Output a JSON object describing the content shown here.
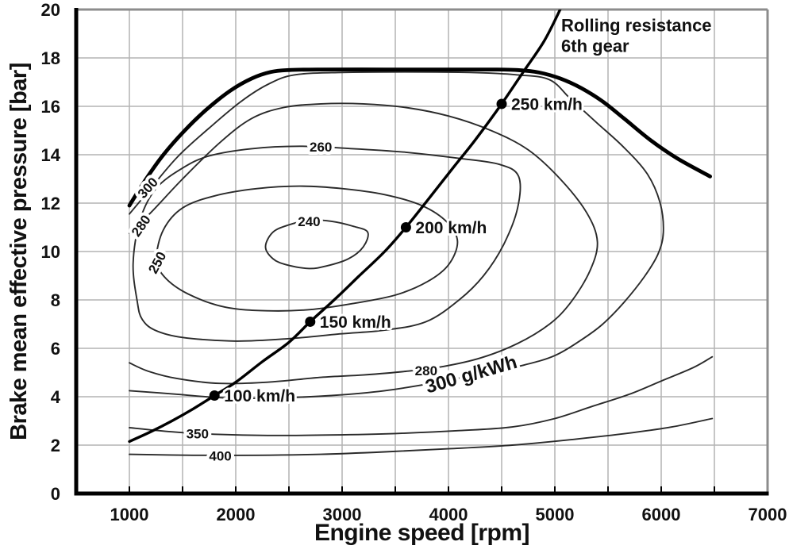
{
  "chart_data": {
    "type": "line",
    "title": "",
    "xlabel": "Engine speed [rpm]",
    "ylabel": "Brake mean effective pressure [bar]",
    "xlim": [
      500,
      7000
    ],
    "ylim": [
      0,
      20
    ],
    "x_ticks": [
      1000,
      2000,
      3000,
      4000,
      5000,
      6000,
      7000
    ],
    "x_minor_step": 500,
    "y_ticks": [
      0,
      2,
      4,
      6,
      8,
      10,
      12,
      14,
      16,
      18,
      20
    ],
    "grid": "on",
    "colors": {
      "grid": "#b3b3b3",
      "border_gray": "#8c8c8c",
      "axis_black": "#000000",
      "contour": "#2a2a2a",
      "text": "#111111"
    },
    "full_load_curve": {
      "name": "full-load-limit",
      "points": [
        [
          1000,
          11.9
        ],
        [
          1150,
          12.95
        ],
        [
          1320,
          14.0
        ],
        [
          1520,
          15.0
        ],
        [
          1720,
          15.85
        ],
        [
          1950,
          16.65
        ],
        [
          2150,
          17.15
        ],
        [
          2330,
          17.42
        ],
        [
          2500,
          17.5
        ],
        [
          2800,
          17.52
        ],
        [
          3400,
          17.52
        ],
        [
          4000,
          17.52
        ],
        [
          4400,
          17.52
        ],
        [
          4650,
          17.5
        ],
        [
          4850,
          17.4
        ],
        [
          5050,
          17.15
        ],
        [
          5250,
          16.75
        ],
        [
          5450,
          16.2
        ],
        [
          5650,
          15.5
        ],
        [
          5900,
          14.6
        ],
        [
          6150,
          13.85
        ],
        [
          6460,
          13.1
        ]
      ]
    },
    "rolling_resistance_curve": {
      "label_lines": [
        "Rolling resistance",
        "6th gear"
      ],
      "label_pos": {
        "rpm": 5060,
        "bar_line1": 19.1,
        "bar_line2": 18.25
      },
      "points": [
        [
          1000,
          2.15
        ],
        [
          1200,
          2.55
        ],
        [
          1400,
          3.0
        ],
        [
          1600,
          3.5
        ],
        [
          1800,
          4.05
        ],
        [
          2000,
          4.6
        ],
        [
          2250,
          5.45
        ],
        [
          2500,
          6.25
        ],
        [
          2700,
          7.1
        ],
        [
          2950,
          8.1
        ],
        [
          3150,
          8.95
        ],
        [
          3400,
          10.0
        ],
        [
          3600,
          11.0
        ],
        [
          3800,
          12.1
        ],
        [
          4050,
          13.5
        ],
        [
          4250,
          14.6
        ],
        [
          4500,
          16.1
        ],
        [
          4700,
          17.4
        ],
        [
          4900,
          18.7
        ],
        [
          5050,
          20.0
        ]
      ],
      "speed_points": [
        {
          "label": "100 km/h",
          "rpm": 1800,
          "bar": 4.05
        },
        {
          "label": "150 km/h",
          "rpm": 2700,
          "bar": 7.1
        },
        {
          "label": "200 km/h",
          "rpm": 3600,
          "bar": 11.0
        },
        {
          "label": "250 km/h",
          "rpm": 4500,
          "bar": 16.1
        }
      ]
    },
    "contours": [
      {
        "level": "240",
        "closed": true,
        "points": [
          [
            2280,
            10.2
          ],
          [
            2350,
            10.8
          ],
          [
            2500,
            11.1
          ],
          [
            2700,
            11.3
          ],
          [
            2900,
            11.25
          ],
          [
            3100,
            11.05
          ],
          [
            3240,
            10.8
          ],
          [
            3200,
            10.2
          ],
          [
            3060,
            9.7
          ],
          [
            2850,
            9.4
          ],
          [
            2690,
            9.3
          ],
          [
            2480,
            9.45
          ],
          [
            2350,
            9.7
          ]
        ],
        "labels": [
          {
            "text": "240",
            "rpm": 2690,
            "bar": 11.25,
            "angle": 0,
            "size": 17
          }
        ]
      },
      {
        "level": "250",
        "closed": true,
        "points": [
          [
            1255,
            9.7
          ],
          [
            1320,
            10.9
          ],
          [
            1500,
            11.8
          ],
          [
            1800,
            12.3
          ],
          [
            2200,
            12.6
          ],
          [
            2600,
            12.7
          ],
          [
            3000,
            12.6
          ],
          [
            3400,
            12.35
          ],
          [
            3750,
            11.9
          ],
          [
            3990,
            11.2
          ],
          [
            4085,
            10.4
          ],
          [
            4000,
            9.45
          ],
          [
            3800,
            8.75
          ],
          [
            3500,
            8.2
          ],
          [
            3100,
            7.85
          ],
          [
            2700,
            7.6
          ],
          [
            2300,
            7.55
          ],
          [
            1900,
            7.7
          ],
          [
            1550,
            8.25
          ],
          [
            1330,
            8.95
          ]
        ],
        "labels": [
          {
            "text": "250",
            "rpm": 1300,
            "bar": 9.65,
            "angle": -62,
            "size": 17
          }
        ]
      },
      {
        "level": "260",
        "closed": true,
        "points": [
          [
            1035,
            9.5
          ],
          [
            1100,
            11.3
          ],
          [
            1250,
            12.6
          ],
          [
            1500,
            13.45
          ],
          [
            1750,
            13.95
          ],
          [
            2150,
            14.25
          ],
          [
            2600,
            14.35
          ],
          [
            3100,
            14.25
          ],
          [
            3600,
            14.1
          ],
          [
            4100,
            13.85
          ],
          [
            4480,
            13.6
          ],
          [
            4660,
            13.1
          ],
          [
            4650,
            11.8
          ],
          [
            4520,
            10.3
          ],
          [
            4330,
            9.0
          ],
          [
            4100,
            8.0
          ],
          [
            3790,
            7.1
          ],
          [
            3400,
            6.75
          ],
          [
            2990,
            6.6
          ],
          [
            2500,
            6.4
          ],
          [
            2000,
            6.3
          ],
          [
            1500,
            6.45
          ],
          [
            1240,
            6.75
          ],
          [
            1120,
            7.2
          ],
          [
            1075,
            7.9
          ]
        ],
        "labels": [
          {
            "text": "260",
            "rpm": 2800,
            "bar": 14.32,
            "angle": 0,
            "size": 17
          }
        ]
      },
      {
        "level": "280",
        "closed": false,
        "points": [
          [
            1000,
            10.75
          ],
          [
            1200,
            11.6
          ],
          [
            1500,
            13.0
          ],
          [
            1850,
            14.5
          ],
          [
            2150,
            15.5
          ],
          [
            2450,
            15.95
          ],
          [
            2800,
            16.1
          ],
          [
            3200,
            16.1
          ],
          [
            3600,
            15.95
          ],
          [
            4000,
            15.6
          ],
          [
            4400,
            15.0
          ],
          [
            4750,
            14.2
          ],
          [
            5050,
            13.0
          ],
          [
            5300,
            11.6
          ],
          [
            5400,
            10.4
          ],
          [
            5330,
            9.2
          ],
          [
            5150,
            7.9
          ],
          [
            4950,
            7.0
          ],
          [
            4650,
            6.2
          ],
          [
            4300,
            5.6
          ],
          [
            3950,
            5.25
          ],
          [
            3600,
            5.05
          ],
          [
            3200,
            4.9
          ],
          [
            2800,
            4.8
          ],
          [
            2300,
            4.6
          ],
          [
            1850,
            4.55
          ],
          [
            1450,
            4.75
          ],
          [
            1180,
            5.05
          ],
          [
            1000,
            5.4
          ]
        ],
        "labels": [
          {
            "text": "280",
            "rpm": 1145,
            "bar": 11.15,
            "angle": -55,
            "size": 17
          },
          {
            "text": "280",
            "rpm": 3790,
            "bar": 5.08,
            "angle": 0,
            "size": 17
          }
        ]
      },
      {
        "level": "300",
        "closed": false,
        "points": [
          [
            1000,
            11.55
          ],
          [
            1180,
            12.5
          ],
          [
            1450,
            13.9
          ],
          [
            1750,
            15.1
          ],
          [
            2050,
            16.2
          ],
          [
            2300,
            16.9
          ],
          [
            2550,
            17.3
          ],
          [
            3000,
            17.4
          ],
          [
            3600,
            17.42
          ],
          [
            4200,
            17.4
          ],
          [
            4650,
            17.3
          ],
          [
            4950,
            17.1
          ],
          [
            5150,
            16.3
          ],
          [
            5400,
            15.3
          ],
          [
            5650,
            14.3
          ],
          [
            5870,
            13.2
          ],
          [
            5990,
            12.0
          ],
          [
            6020,
            10.8
          ],
          [
            5970,
            9.9
          ],
          [
            5840,
            8.95
          ],
          [
            5650,
            7.9
          ],
          [
            5450,
            7.0
          ],
          [
            5250,
            6.35
          ],
          [
            5000,
            5.7
          ],
          [
            4700,
            5.3
          ],
          [
            4300,
            4.95
          ],
          [
            3900,
            4.6
          ],
          [
            3400,
            4.25
          ],
          [
            2900,
            4.05
          ],
          [
            2400,
            3.95
          ],
          [
            1900,
            3.95
          ],
          [
            1450,
            4.1
          ],
          [
            1000,
            4.25
          ]
        ],
        "labels": [
          {
            "text": "300",
            "rpm": 1205,
            "bar": 12.7,
            "angle": -48,
            "size": 17
          },
          {
            "text": "300 g/kWh",
            "rpm": 4230,
            "bar": 4.95,
            "angle": -16,
            "size": 24
          }
        ]
      },
      {
        "level": "350",
        "closed": false,
        "points": [
          [
            1000,
            2.72
          ],
          [
            1400,
            2.55
          ],
          [
            1800,
            2.45
          ],
          [
            2300,
            2.4
          ],
          [
            2900,
            2.42
          ],
          [
            3500,
            2.48
          ],
          [
            4100,
            2.6
          ],
          [
            4600,
            2.75
          ],
          [
            5000,
            3.1
          ],
          [
            5350,
            3.6
          ],
          [
            5700,
            4.1
          ],
          [
            6000,
            4.65
          ],
          [
            6300,
            5.2
          ],
          [
            6480,
            5.65
          ]
        ],
        "labels": [
          {
            "text": "350",
            "rpm": 1640,
            "bar": 2.48,
            "angle": 0,
            "size": 17
          }
        ]
      },
      {
        "level": "400",
        "closed": false,
        "points": [
          [
            1000,
            1.62
          ],
          [
            1600,
            1.58
          ],
          [
            2200,
            1.58
          ],
          [
            2800,
            1.62
          ],
          [
            3400,
            1.72
          ],
          [
            4000,
            1.85
          ],
          [
            4600,
            2.0
          ],
          [
            5200,
            2.25
          ],
          [
            5700,
            2.5
          ],
          [
            6100,
            2.75
          ],
          [
            6480,
            3.1
          ]
        ],
        "labels": [
          {
            "text": "400",
            "rpm": 1855,
            "bar": 1.55,
            "angle": 0,
            "size": 17
          }
        ]
      }
    ]
  }
}
